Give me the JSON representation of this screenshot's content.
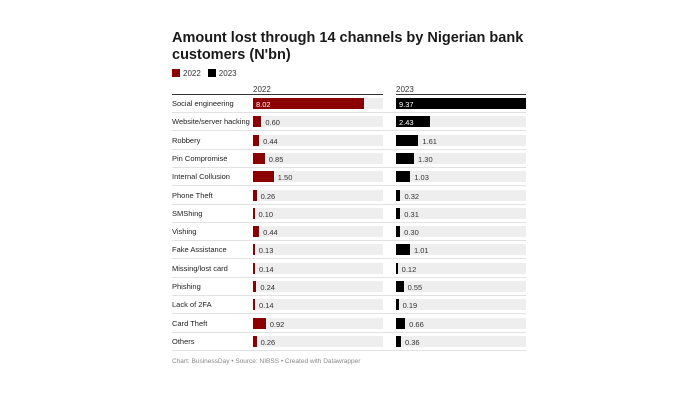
{
  "chart_data": {
    "type": "bar",
    "title": "Amount lost through 14 channels by Nigerian bank customers (N'bn)",
    "categories": [
      "Social engineering",
      "Website/server hacking",
      "Robbery",
      "Pin Compromise",
      "Internal Collusion",
      "Phone Theft",
      "SMShing",
      "Vishing",
      "Fake Assistance",
      "Missing/lost card",
      "Phishing",
      "Lack of 2FA",
      "Card Theft",
      "Others"
    ],
    "series": [
      {
        "name": "2022",
        "color": "#8b0000",
        "values": [
          8.02,
          0.6,
          0.44,
          0.85,
          1.5,
          0.26,
          0.1,
          0.44,
          0.13,
          0.14,
          0.24,
          0.14,
          0.92,
          0.26
        ]
      },
      {
        "name": "2023",
        "color": "#000000",
        "values": [
          9.37,
          2.43,
          1.61,
          1.3,
          1.03,
          0.32,
          0.31,
          0.3,
          1.01,
          0.12,
          0.55,
          0.19,
          0.66,
          0.36
        ]
      }
    ],
    "value_labels": [
      [
        "8.02",
        "0.60",
        "0.44",
        "0.85",
        "1.50",
        "0.26",
        "0.10",
        "0.44",
        "0.13",
        "0.14",
        "0.24",
        "0.14",
        "0.92",
        "0.26"
      ],
      [
        "9.37",
        "2.43",
        "1.61",
        "1.30",
        "1.03",
        "0.32",
        "0.31",
        "0.30",
        "1.01",
        "0.12",
        "0.55",
        "0.19",
        "0.66",
        "0.36"
      ]
    ],
    "xlim": [
      0,
      9.37
    ],
    "legend": "top-left"
  },
  "footer": "Chart: BusinessDay • Source: NIBSS • Created with Datawrapper"
}
